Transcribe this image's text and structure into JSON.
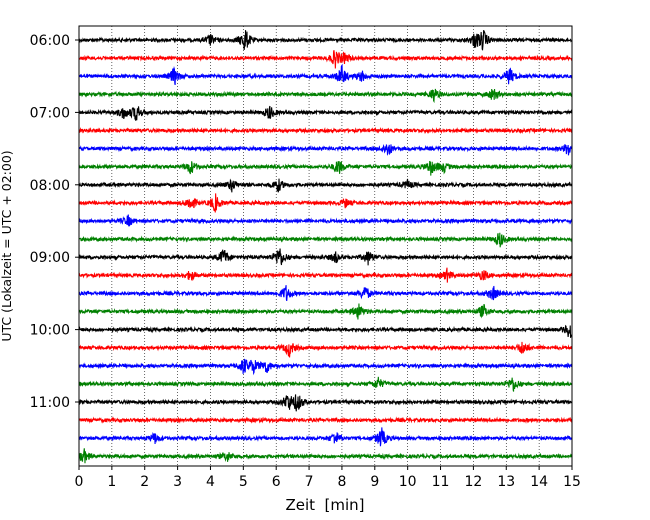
{
  "chart_data": {
    "type": "line",
    "title": "",
    "xlabel": "Zeit  [min]",
    "ylabel": "UTC (Lokalzeit = UTC + 02:00)",
    "xlim": [
      0,
      15
    ],
    "x_ticks": [
      "0",
      "1",
      "2",
      "3",
      "4",
      "5",
      "6",
      "7",
      "8",
      "9",
      "10",
      "11",
      "12",
      "13",
      "14",
      "15"
    ],
    "y_ticks": [
      "06:00",
      "07:00",
      "08:00",
      "09:00",
      "10:00",
      "11:00"
    ],
    "grid": "vertical dotted",
    "trace_colors": [
      "#000000",
      "#ff0000",
      "#0000ff",
      "#008000"
    ],
    "rows": [
      {
        "start": "06:00",
        "color": "#000000",
        "events": [
          {
            "t": 4.0,
            "a": 0.6
          },
          {
            "t": 5.05,
            "a": 1.4
          },
          {
            "t": 12.05,
            "a": 0.8
          },
          {
            "t": 12.3,
            "a": 1.1
          }
        ]
      },
      {
        "start": "06:15",
        "color": "#ff0000",
        "events": [
          {
            "t": 7.8,
            "a": 1.0
          },
          {
            "t": 8.1,
            "a": 0.5
          }
        ]
      },
      {
        "start": "06:30",
        "color": "#0000ff",
        "events": [
          {
            "t": 2.9,
            "a": 1.0
          },
          {
            "t": 8.0,
            "a": 1.2
          },
          {
            "t": 8.6,
            "a": 0.6
          },
          {
            "t": 13.1,
            "a": 1.0
          }
        ]
      },
      {
        "start": "06:45",
        "color": "#008000",
        "events": [
          {
            "t": 10.8,
            "a": 0.8
          },
          {
            "t": 12.6,
            "a": 0.7
          }
        ]
      },
      {
        "start": "07:00",
        "color": "#000000",
        "events": [
          {
            "t": 1.35,
            "a": 0.7
          },
          {
            "t": 1.75,
            "a": 1.0
          },
          {
            "t": 5.8,
            "a": 0.8
          }
        ]
      },
      {
        "start": "07:15",
        "color": "#ff0000",
        "events": []
      },
      {
        "start": "07:30",
        "color": "#0000ff",
        "events": [
          {
            "t": 9.4,
            "a": 0.8
          },
          {
            "t": 14.9,
            "a": 0.9
          }
        ]
      },
      {
        "start": "07:45",
        "color": "#008000",
        "events": [
          {
            "t": 3.4,
            "a": 0.8
          },
          {
            "t": 7.9,
            "a": 0.9
          },
          {
            "t": 10.7,
            "a": 0.9
          },
          {
            "t": 11.1,
            "a": 0.6
          }
        ]
      },
      {
        "start": "08:00",
        "color": "#000000",
        "events": [
          {
            "t": 4.65,
            "a": 0.7
          },
          {
            "t": 6.05,
            "a": 0.8
          },
          {
            "t": 10.0,
            "a": 0.5
          }
        ]
      },
      {
        "start": "08:15",
        "color": "#ff0000",
        "events": [
          {
            "t": 3.4,
            "a": 0.9
          },
          {
            "t": 4.15,
            "a": 1.0
          },
          {
            "t": 8.1,
            "a": 0.5
          }
        ]
      },
      {
        "start": "08:30",
        "color": "#0000ff",
        "events": [
          {
            "t": 1.5,
            "a": 0.6
          }
        ]
      },
      {
        "start": "08:45",
        "color": "#008000",
        "events": [
          {
            "t": 12.8,
            "a": 0.9
          }
        ]
      },
      {
        "start": "09:00",
        "color": "#000000",
        "events": [
          {
            "t": 4.4,
            "a": 1.0
          },
          {
            "t": 6.1,
            "a": 1.3
          },
          {
            "t": 7.8,
            "a": 0.6
          },
          {
            "t": 8.8,
            "a": 0.8
          }
        ]
      },
      {
        "start": "09:15",
        "color": "#ff0000",
        "events": [
          {
            "t": 3.4,
            "a": 0.6
          },
          {
            "t": 11.2,
            "a": 0.7
          },
          {
            "t": 12.3,
            "a": 0.6
          }
        ]
      },
      {
        "start": "09:30",
        "color": "#0000ff",
        "events": [
          {
            "t": 6.3,
            "a": 0.9
          },
          {
            "t": 8.7,
            "a": 0.9
          },
          {
            "t": 12.6,
            "a": 0.8
          }
        ]
      },
      {
        "start": "09:45",
        "color": "#008000",
        "events": [
          {
            "t": 8.5,
            "a": 0.9
          },
          {
            "t": 12.3,
            "a": 0.8
          }
        ]
      },
      {
        "start": "10:00",
        "color": "#000000",
        "events": [
          {
            "t": 14.95,
            "a": 1.2
          }
        ]
      },
      {
        "start": "10:15",
        "color": "#ff0000",
        "events": [
          {
            "t": 6.4,
            "a": 1.0
          },
          {
            "t": 13.5,
            "a": 0.8
          }
        ]
      },
      {
        "start": "10:30",
        "color": "#0000ff",
        "events": [
          {
            "t": 5.0,
            "a": 0.9
          },
          {
            "t": 5.3,
            "a": 0.8
          },
          {
            "t": 5.7,
            "a": 0.8
          }
        ]
      },
      {
        "start": "10:45",
        "color": "#008000",
        "events": [
          {
            "t": 9.1,
            "a": 0.7
          },
          {
            "t": 13.2,
            "a": 0.9
          }
        ]
      },
      {
        "start": "11:00",
        "color": "#000000",
        "events": [
          {
            "t": 6.35,
            "a": 1.0
          },
          {
            "t": 6.65,
            "a": 1.1
          }
        ]
      },
      {
        "start": "11:15",
        "color": "#ff0000",
        "events": []
      },
      {
        "start": "11:30",
        "color": "#0000ff",
        "events": [
          {
            "t": 2.3,
            "a": 0.6
          },
          {
            "t": 7.8,
            "a": 0.8
          },
          {
            "t": 9.2,
            "a": 1.2
          }
        ]
      },
      {
        "start": "11:45",
        "color": "#008000",
        "events": [
          {
            "t": 0.15,
            "a": 0.8
          },
          {
            "t": 4.5,
            "a": 0.6
          }
        ]
      }
    ]
  }
}
